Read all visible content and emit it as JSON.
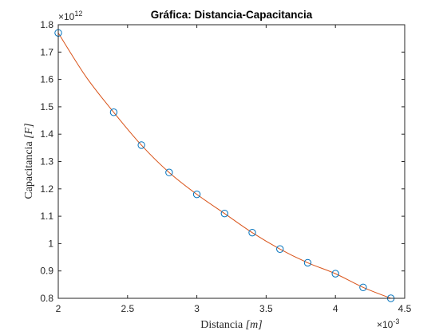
{
  "chart_data": {
    "type": "scatter",
    "title": "Gráfica: Distancia-Capacitancia",
    "xlabel": "Distancia [m]",
    "ylabel": "Capacitancia [F]",
    "x_multiplier": "×10^-3",
    "y_multiplier": "×10^12",
    "xlim": [
      2,
      4.5
    ],
    "ylim": [
      0.8,
      1.8
    ],
    "xticks": [
      "2",
      "2.5",
      "3",
      "3.5",
      "4",
      "4.5"
    ],
    "yticks": [
      "0.8",
      "0.9",
      "1",
      "1.1",
      "1.2",
      "1.3",
      "1.4",
      "1.5",
      "1.6",
      "1.7",
      "1.8"
    ],
    "series": [
      {
        "style": "markers",
        "marker": "circle",
        "color": "#0072BD",
        "x": [
          2.0,
          2.4,
          2.6,
          2.8,
          3.0,
          3.2,
          3.4,
          3.6,
          3.8,
          4.0,
          4.2,
          4.4
        ],
        "y": [
          1.77,
          1.48,
          1.36,
          1.26,
          1.18,
          1.11,
          1.04,
          0.98,
          0.93,
          0.89,
          0.84,
          0.8
        ]
      },
      {
        "style": "line",
        "color": "#D95319",
        "x": [
          2.0,
          2.2,
          2.4,
          2.6,
          2.8,
          3.0,
          3.2,
          3.4,
          3.6,
          3.8,
          4.0,
          4.2,
          4.4
        ],
        "y": [
          1.77,
          1.61,
          1.48,
          1.36,
          1.26,
          1.18,
          1.11,
          1.04,
          0.98,
          0.93,
          0.89,
          0.84,
          0.8
        ]
      }
    ]
  },
  "labels": {
    "x_exp_base": "×10",
    "x_exp_power": "-3",
    "y_exp_base": "×10",
    "y_exp_power": "12",
    "xlabel_main": "Distancia ",
    "xlabel_unit": "[m]",
    "ylabel_main": "Capacitancia ",
    "ylabel_unit": "[F]"
  }
}
